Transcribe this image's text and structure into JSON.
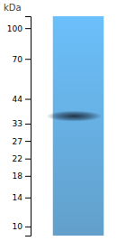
{
  "chart_data": {
    "type": "gel",
    "ylabel": "kDa",
    "values": [
      36
    ],
    "log": "y",
    "ylim": [
      8.994976,
      114.815362
    ],
    "yticks": [
      100,
      70,
      44,
      33,
      27,
      22,
      18,
      14,
      10
    ],
    "grid": false
  }
}
